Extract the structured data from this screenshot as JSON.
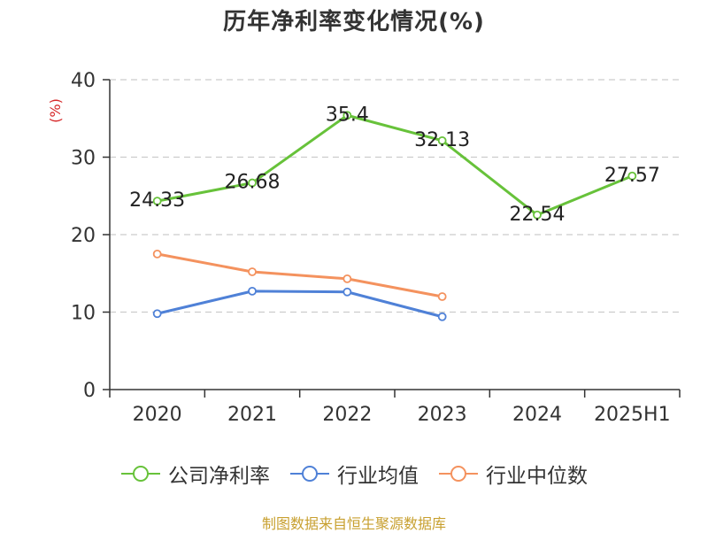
{
  "colors": {
    "net_margin": "#67c23a",
    "industry_avg": "#4f81d7",
    "industry_median": "#f4925e",
    "axis": "#333333",
    "grid": "#cccccc",
    "unit": "#d62728",
    "source": "#c8a030"
  },
  "chart_data": {
    "type": "line",
    "title": "历年净利率变化情况(%)",
    "ylabel": "(%)",
    "xlabel": "",
    "categories": [
      "2020",
      "2021",
      "2022",
      "2023",
      "2024",
      "2025H1"
    ],
    "ylim": [
      0,
      40
    ],
    "yticks": [
      0,
      10,
      20,
      30,
      40
    ],
    "grid": true,
    "legend_position": "bottom",
    "series": [
      {
        "name": "公司净利率",
        "values": [
          24.33,
          26.68,
          35.4,
          32.13,
          22.54,
          27.57
        ],
        "labels": [
          "24.33",
          "26.68",
          "35.4",
          "32.13",
          "22.54",
          "27.57"
        ]
      },
      {
        "name": "行业均值",
        "values": [
          9.8,
          12.7,
          12.6,
          9.4,
          null,
          null
        ]
      },
      {
        "name": "行业中位数",
        "values": [
          17.5,
          15.2,
          14.3,
          12.0,
          null,
          null
        ]
      }
    ]
  },
  "footer": {
    "source": "制图数据来自恒生聚源数据库"
  }
}
